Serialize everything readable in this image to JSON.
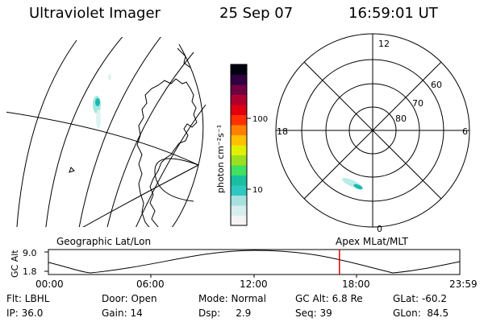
{
  "header": {
    "title": "Ultraviolet Imager",
    "date": "25 Sep 07",
    "time": "16:59:01 UT"
  },
  "colorbar": {
    "label": "photon cm⁻²s⁻¹",
    "ticks": [
      "100",
      "10"
    ]
  },
  "polar": {
    "mlt": {
      "top": "12",
      "left": "18",
      "right": "6",
      "bottom": "0"
    },
    "lat": [
      "60",
      "70",
      "80"
    ]
  },
  "projections": {
    "left": "Geographic Lat/Lon",
    "right": "Apex MLat/MLT"
  },
  "altitude_plot": {
    "ylabel": "GC Alt",
    "yticks": [
      "9.0",
      "1.8"
    ],
    "xticks": [
      "00:00",
      "06:00",
      "12:00",
      "18:00",
      "23:59"
    ],
    "marker_time_hours": 16.98
  },
  "info": {
    "filter": "Flt: LBHL",
    "door": "Door: Open",
    "mode": "Mode: Normal",
    "gc_alt": "GC Alt: 6.8 Re",
    "glat": "GLat: -60.2",
    "ip": "IP: 36.0",
    "gain": "Gain: 14",
    "dsp": "Dsp:     2.9",
    "seq": "Seq: 39",
    "glon": "GLon:  84.5"
  }
}
